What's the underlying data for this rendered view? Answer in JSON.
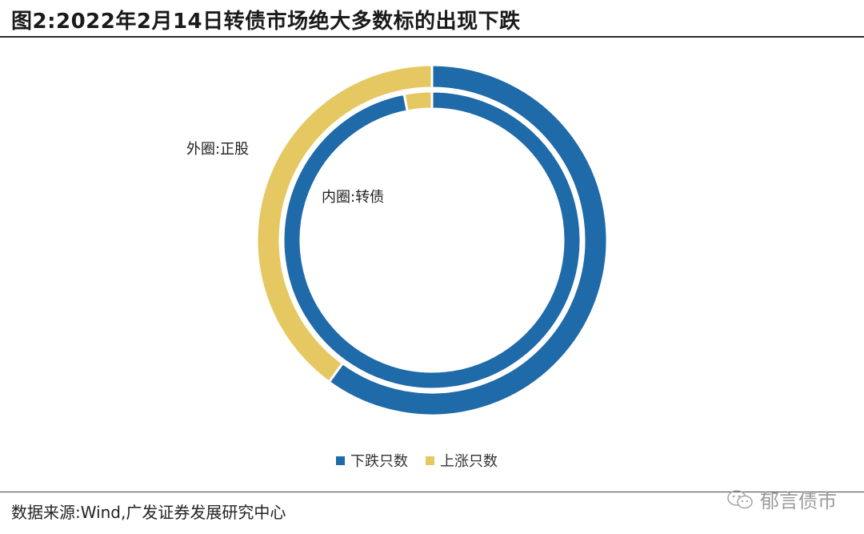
{
  "title": "图2:2022年2月14日转债市场绝大多数标的出现下跌",
  "annotations": {
    "outer": "外圈:正股",
    "inner": "内圈:转债"
  },
  "source": "数据来源:Wind,广发证券发展研究中心",
  "watermark": "郁言债市",
  "chart_data": {
    "type": "pie",
    "subtype": "nested-donut",
    "categories": [
      "下跌只数",
      "上涨只数"
    ],
    "colors": [
      "#1f6aa8",
      "#e6c862"
    ],
    "series": [
      {
        "ring": "outer",
        "label": "外圈:正股",
        "values": [
          60,
          40
        ]
      },
      {
        "ring": "inner",
        "label": "内圈:转债",
        "values": [
          97,
          3
        ]
      }
    ],
    "legend_position": "bottom",
    "start_angle_deg": 0,
    "direction": "clockwise"
  }
}
